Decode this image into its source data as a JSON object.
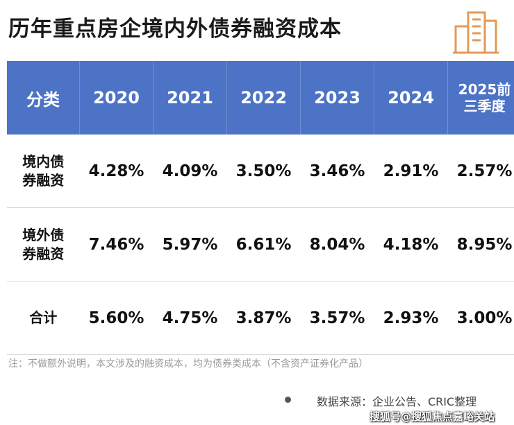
{
  "header": {
    "title": "历年重点房企境内外债券融资成本"
  },
  "table": {
    "columns": [
      [
        "分类"
      ],
      [
        "2020"
      ],
      [
        "2021"
      ],
      [
        "2022"
      ],
      [
        "2023"
      ],
      [
        "2024"
      ],
      [
        "2025前",
        "三季度"
      ]
    ],
    "rows": [
      {
        "label": [
          "境内债",
          "券融资"
        ],
        "cells": [
          "4.28%",
          "4.09%",
          "3.50%",
          "3.46%",
          "2.91%",
          "2.57%"
        ]
      },
      {
        "label": [
          "境外债",
          "券融资"
        ],
        "cells": [
          "7.46%",
          "5.97%",
          "6.61%",
          "8.04%",
          "4.18%",
          "8.95%"
        ]
      },
      {
        "label": [
          "合计"
        ],
        "cells": [
          "5.60%",
          "4.75%",
          "3.87%",
          "3.57%",
          "2.93%",
          "3.00%"
        ]
      }
    ]
  },
  "footer": {
    "note": "注：不做额外说明，本文涉及的融资成本，均为债券类成本（不含资产证券化产品）",
    "source": "数据来源：企业公告、CRIC整理",
    "watermark": "搜狐号@搜狐焦点嘉峪关站"
  }
}
